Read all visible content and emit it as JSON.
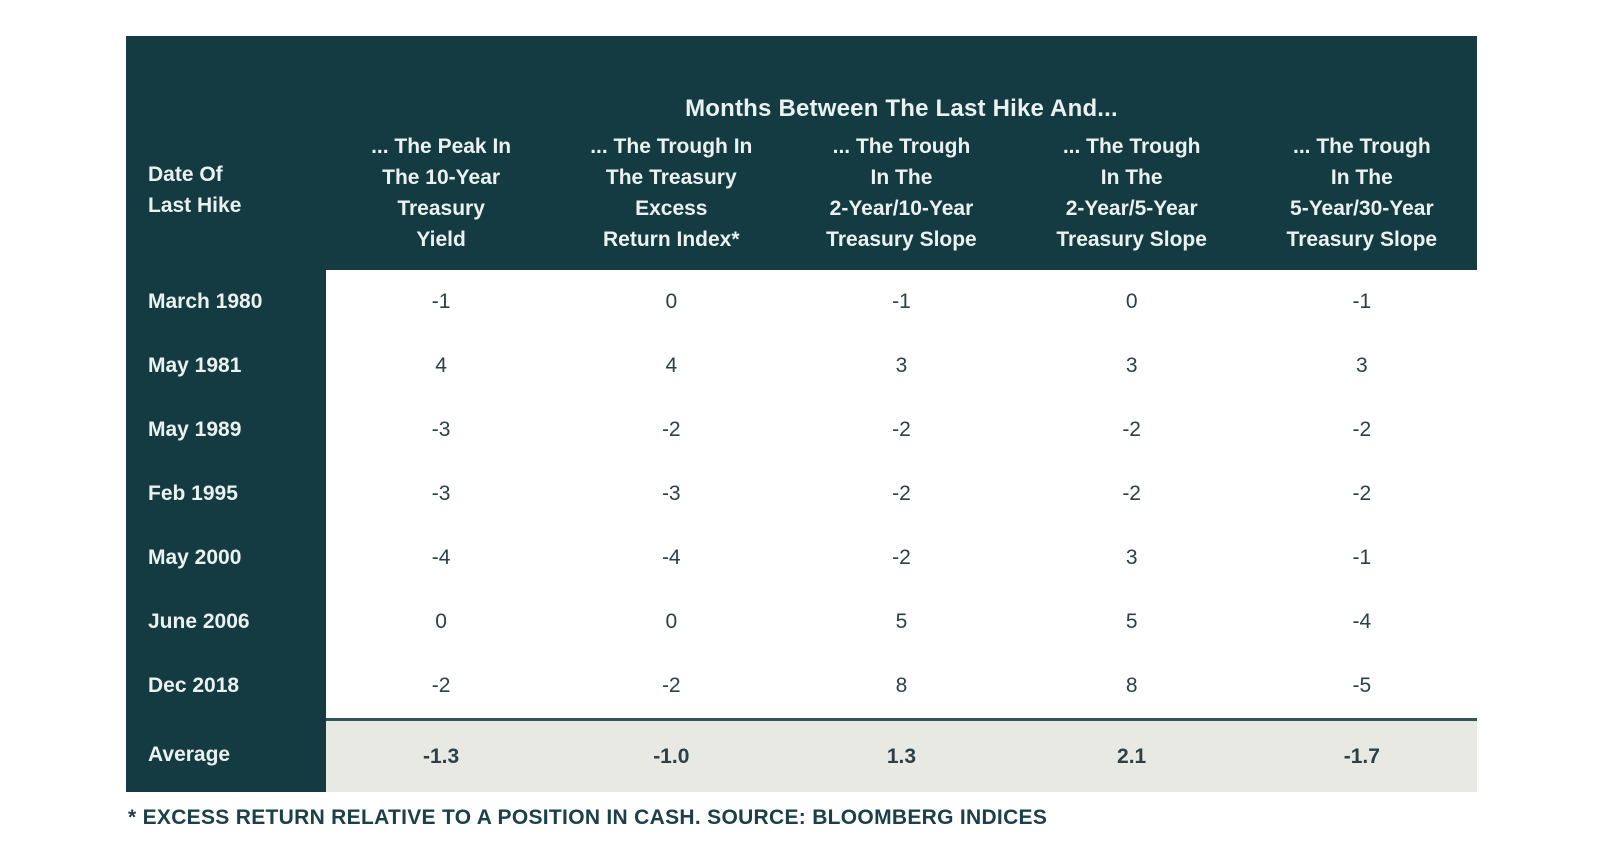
{
  "colors": {
    "dark_teal": "#133B41",
    "header_text": "#EAF1F0",
    "body_text": "#2B4147",
    "average_bg": "#E9E9E4",
    "average_border": "#33535A",
    "footnote_text": "#1C4049",
    "page_bg": "#FFFFFF"
  },
  "table": {
    "title": "Months Between The Last Hike And...",
    "row_header_lines": [
      "Date Of",
      "Last Hike"
    ],
    "columns": [
      {
        "lines": [
          "... The Peak In",
          "The 10-Year",
          "Treasury",
          "Yield"
        ]
      },
      {
        "lines": [
          "... The Trough In",
          "The Treasury",
          "Excess",
          "Return Index*"
        ]
      },
      {
        "lines": [
          "... The Trough",
          "In The",
          "2-Year/10-Year",
          "Treasury Slope"
        ]
      },
      {
        "lines": [
          "... The Trough",
          "In The",
          "2-Year/5-Year",
          "Treasury Slope"
        ]
      },
      {
        "lines": [
          "... The Trough",
          "In The",
          "5-Year/30-Year",
          "Treasury Slope"
        ]
      }
    ],
    "rows": [
      {
        "label": "March 1980",
        "values": [
          "-1",
          "0",
          "-1",
          "0",
          "-1"
        ]
      },
      {
        "label": "May 1981",
        "values": [
          "4",
          "4",
          "3",
          "3",
          "3"
        ]
      },
      {
        "label": "May 1989",
        "values": [
          "-3",
          "-2",
          "-2",
          "-2",
          "-2"
        ]
      },
      {
        "label": "Feb 1995",
        "values": [
          "-3",
          "-3",
          "-2",
          "-2",
          "-2"
        ]
      },
      {
        "label": "May 2000",
        "values": [
          "-4",
          "-4",
          "-2",
          "3",
          "-1"
        ]
      },
      {
        "label": "June 2006",
        "values": [
          "0",
          "0",
          "5",
          "5",
          "-4"
        ]
      },
      {
        "label": "Dec 2018",
        "values": [
          "-2",
          "-2",
          "8",
          "8",
          "-5"
        ]
      }
    ],
    "average": {
      "label": "Average",
      "values": [
        "-1.3",
        "-1.0",
        "1.3",
        "2.1",
        "-1.7"
      ]
    }
  },
  "footnote": "* EXCESS RETURN RELATIVE TO A POSITION IN CASH. SOURCE: BLOOMBERG INDICES",
  "chart_data": {
    "type": "table",
    "title": "Months Between The Last Hike And...",
    "row_header": "Date Of Last Hike",
    "columns": [
      "... The Peak In The 10-Year Treasury Yield",
      "... The Trough In The Treasury Excess Return Index*",
      "... The Trough In The 2-Year/10-Year Treasury Slope",
      "... The Trough In The 2-Year/5-Year Treasury Slope",
      "... The Trough In The 5-Year/30-Year Treasury Slope"
    ],
    "rows": [
      {
        "label": "March 1980",
        "values": [
          -1,
          0,
          -1,
          0,
          -1
        ]
      },
      {
        "label": "May 1981",
        "values": [
          4,
          4,
          3,
          3,
          3
        ]
      },
      {
        "label": "May 1989",
        "values": [
          -3,
          -2,
          -2,
          -2,
          -2
        ]
      },
      {
        "label": "Feb 1995",
        "values": [
          -3,
          -3,
          -2,
          -2,
          -2
        ]
      },
      {
        "label": "May 2000",
        "values": [
          -4,
          -4,
          -2,
          3,
          -1
        ]
      },
      {
        "label": "June 2006",
        "values": [
          0,
          0,
          5,
          5,
          -4
        ]
      },
      {
        "label": "Dec 2018",
        "values": [
          -2,
          -2,
          8,
          8,
          -5
        ]
      }
    ],
    "average": {
      "label": "Average",
      "values": [
        -1.3,
        -1.0,
        1.3,
        2.1,
        -1.7
      ]
    },
    "footnote": "* EXCESS RETURN RELATIVE TO A POSITION IN CASH. SOURCE: BLOOMBERG INDICES"
  }
}
